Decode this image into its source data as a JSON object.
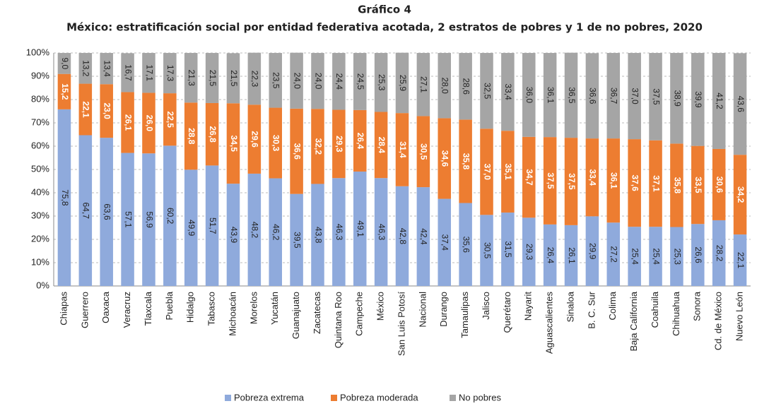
{
  "chart_data": {
    "type": "stacked_bar",
    "title": "Gráfico 4",
    "subtitle": "México: estratificación social por entidad federativa acotada, 2 estratos de pobres y 1 de no pobres, 2020",
    "categories": [
      "Chiapas",
      "Guerrero",
      "Oaxaca",
      "Veracruz",
      "Tlaxcala",
      "Puebla",
      "Hidalgo",
      "Tabasco",
      "Michoacán",
      "Morelos",
      "Yucatán",
      "Guanajuato",
      "Zacatecas",
      "Quintana Roo",
      "Campeche",
      "México",
      "San Luis Potosí",
      "Nacional",
      "Durango",
      "Tamaulipas",
      "Jalisco",
      "Querétaro",
      "Nayarit",
      "Aguascalientes",
      "Sinaloa",
      "B. C.  Sur",
      "Colima",
      "Baja California",
      "Coahuila",
      "Chihuahua",
      "Sonora",
      "Cd. de  México",
      "Nuevo León"
    ],
    "series": [
      {
        "name": "Pobreza extrema",
        "color": "#8faadc",
        "values": [
          75.8,
          64.7,
          63.6,
          57.1,
          56.9,
          60.2,
          49.9,
          51.7,
          43.9,
          48.2,
          46.2,
          39.5,
          43.8,
          46.3,
          49.1,
          46.3,
          42.8,
          42.4,
          37.4,
          35.6,
          30.5,
          31.5,
          29.3,
          26.4,
          26.1,
          29.9,
          27.2,
          25.4,
          25.4,
          25.3,
          26.6,
          28.2,
          22.1
        ],
        "value_labels": [
          "75,8",
          "64,7",
          "63,6",
          "57,1",
          "56,9",
          "60,2",
          "49,9",
          "51,7",
          "43,9",
          "48,2",
          "46,2",
          "39,5",
          "43,8",
          "46,3",
          "49,1",
          "46,3",
          "42,8",
          "42,4",
          "37,4",
          "35,6",
          "30,5",
          "31,5",
          "29,3",
          "26,4",
          "26,1",
          "29,9",
          "27,2",
          "25,4",
          "25,4",
          "25,3",
          "26,6",
          "28,2",
          "22,1"
        ]
      },
      {
        "name": "Pobreza moderada",
        "color": "#ed7d31",
        "values": [
          15.2,
          22.1,
          23.0,
          26.1,
          26.0,
          22.5,
          28.8,
          26.8,
          34.5,
          29.6,
          30.3,
          36.6,
          32.2,
          29.3,
          26.4,
          28.4,
          31.4,
          30.5,
          34.6,
          35.8,
          37.0,
          35.1,
          34.7,
          37.5,
          37.5,
          33.4,
          36.1,
          37.6,
          37.1,
          35.8,
          33.5,
          30.6,
          34.2
        ],
        "value_labels": [
          "15,2",
          "22,1",
          "23,0",
          "26,1",
          "26,0",
          "22,5",
          "28,8",
          "26,8",
          "34,5",
          "29,6",
          "30,3",
          "36,6",
          "32,2",
          "29,3",
          "26,4",
          "28,4",
          "31,4",
          "30,5",
          "34,6",
          "35,8",
          "37,0",
          "35,1",
          "34,7",
          "37,5",
          "37,5",
          "33,4",
          "36,1",
          "37,6",
          "37,1",
          "35,8",
          "33,5",
          "30,6",
          "34,2"
        ]
      },
      {
        "name": "No pobres",
        "color": "#a5a5a5",
        "values": [
          9.0,
          13.2,
          13.4,
          16.7,
          17.1,
          17.3,
          21.3,
          21.5,
          21.5,
          22.3,
          23.5,
          24.0,
          24.0,
          24.4,
          24.5,
          25.3,
          25.9,
          27.1,
          28.0,
          28.6,
          32.5,
          33.4,
          36.0,
          36.1,
          36.5,
          36.6,
          36.7,
          37.0,
          37.5,
          38.9,
          39.9,
          41.2,
          43.6
        ],
        "value_labels": [
          "9,0",
          "13,2",
          "13,4",
          "16,7",
          "17,1",
          "17,3",
          "21,3",
          "21,5",
          "21,5",
          "22,3",
          "23,5",
          "24,0",
          "24,0",
          "24,4",
          "24,5",
          "25,3",
          "25,9",
          "27,1",
          "28,0",
          "28,6",
          "32,5",
          "33,4",
          "36,0",
          "36,1",
          "36,5",
          "36,6",
          "36,7",
          "37,0",
          "37,5",
          "38,9",
          "39,9",
          "41,2",
          "43,6"
        ]
      }
    ],
    "ylim": [
      0,
      100
    ],
    "yticks": [
      {
        "value": 0,
        "label": "0%"
      },
      {
        "value": 10,
        "label": "10%"
      },
      {
        "value": 20,
        "label": "20%"
      },
      {
        "value": 30,
        "label": "30%"
      },
      {
        "value": 40,
        "label": "40%"
      },
      {
        "value": 50,
        "label": "50%"
      },
      {
        "value": 60,
        "label": "60%"
      },
      {
        "value": 70,
        "label": "70%"
      },
      {
        "value": 80,
        "label": "80%"
      },
      {
        "value": 90,
        "label": "90%"
      },
      {
        "value": 100,
        "label": "100%"
      }
    ],
    "grid": true,
    "legend": "bottom"
  }
}
